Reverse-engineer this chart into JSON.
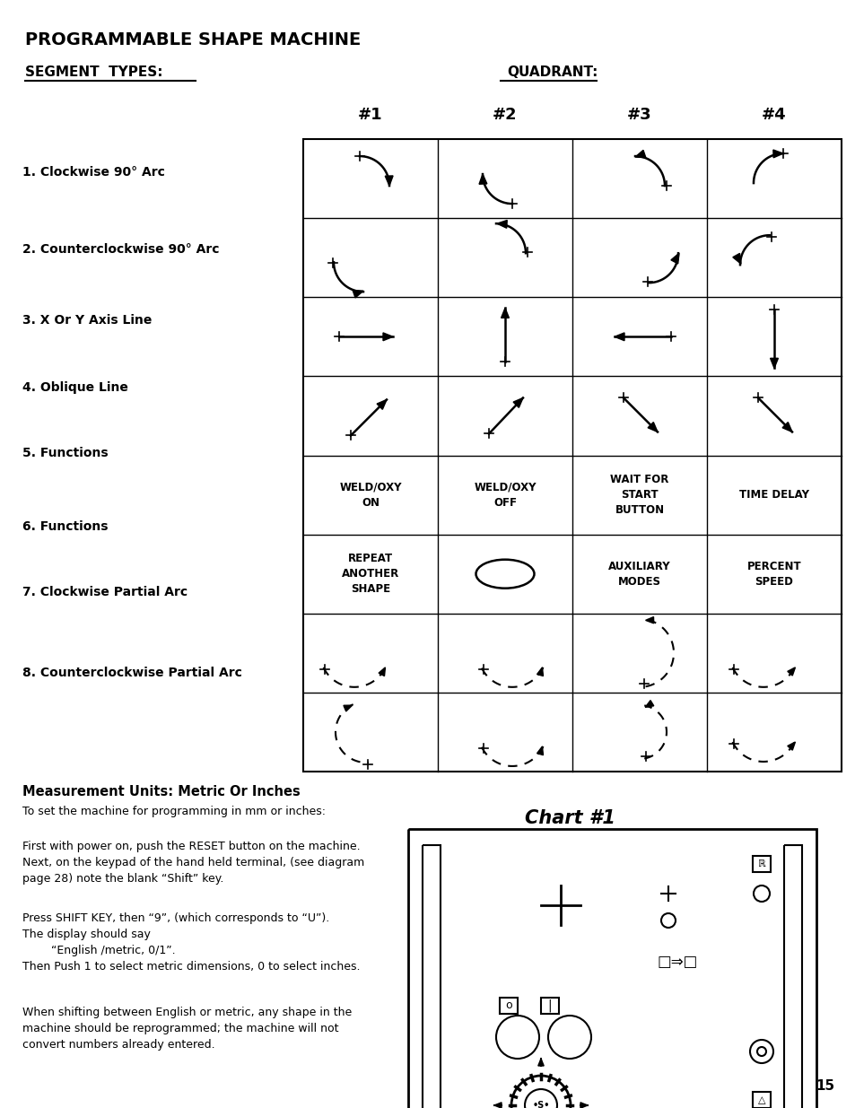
{
  "title": "PROGRAMMABLE SHAPE MACHINE",
  "segment_types_label": "SEGMENT  TYPES:",
  "quadrant_label": "QUADRANT:",
  "col_headers": [
    "#1",
    "#2",
    "#3",
    "#4"
  ],
  "row_labels": [
    "1. Clockwise 90° Arc",
    "2. Counterclockwise 90° Arc",
    "3. X Or Y Axis Line",
    "4. Oblique Line",
    "5. Functions",
    "6. Functions",
    "7. Clockwise Partial Arc",
    "8. Counterclockwise Partial Arc"
  ],
  "measurement_title": "Measurement Units: Metric Or Inches",
  "measurement_text1": "To set the machine for programming in mm or inches:",
  "chart_label": "Chart #1",
  "paragraph1": "First with power on, push the RESET button on the machine.\nNext, on the keypad of the hand held terminal, (see diagram\npage 28) note the blank “Shift” key.",
  "paragraph2": "Press SHIFT KEY, then “9”, (which corresponds to “U”).\nThe display should say\n        “English /metric, 0/1”.\nThen Push 1 to select metric dimensions, 0 to select inches.",
  "paragraph3": "When shifting between English or metric, any shape in the\nmachine should be reprogrammed; the machine will not\nconvert numbers already entered.",
  "page_number": "15",
  "background": "#ffffff",
  "cell_texts": {
    "4_0": "WELD/OXY\nON",
    "4_1": "WELD/OXY\nOFF",
    "4_2": "WAIT FOR\nSTART\nBUTTON",
    "4_3": "TIME DELAY",
    "5_0": "REPEAT\nANOTHER\nSHAPE",
    "5_2": "AUXILIARY\nMODES",
    "5_3": "PERCENT\nSPEED"
  }
}
